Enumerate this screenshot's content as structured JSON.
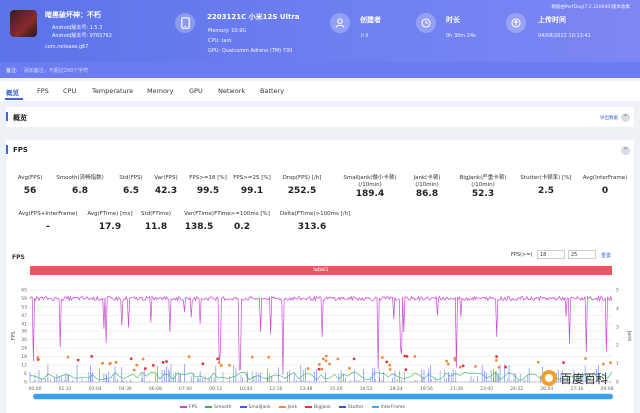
{
  "header": {
    "app_name": "暗黑破坏神：不朽",
    "android_version_line": "Android版本号: 1.5.3",
    "android_code_line": "Android版本号: 9765762",
    "package": "com.netease.g67",
    "device_title": "2203121C 小米12S Ultra",
    "memory": "Memory: 10.9G",
    "cpu": "CPU: taro",
    "gpu": "GPU: Qualcomm Adreno (TM) 730",
    "creator_label": "创建者",
    "creator_value": "li li",
    "duration_label": "时长",
    "duration_value": "0h 30m 24s",
    "upload_label": "上传时间",
    "upload_value": "04/08/2022 10:13:41",
    "perfdog_version": "数据由PerfDog(7.2.220640)版本收集"
  },
  "note": {
    "label": "备注:",
    "placeholder": "添加备注，不超过200个字符"
  },
  "tabs": [
    "概览",
    "FPS",
    "CPU",
    "Temperature",
    "Memory",
    "GPU",
    "Network",
    "Battery"
  ],
  "overview": {
    "title": "概览",
    "export": "导出数据"
  },
  "fps_section": {
    "title": "FPS"
  },
  "stats_row1": [
    {
      "label": "Avg(FPS)",
      "value": "56"
    },
    {
      "label": "Smooth(流畅指数)",
      "value": "6.8"
    },
    {
      "label": "Std(FPS)",
      "value": "6.5"
    },
    {
      "label": "Var(FPS)",
      "value": "42.3"
    },
    {
      "label": "FPS>=18 [%]",
      "value": "99.5"
    },
    {
      "label": "FPS>=25 [%]",
      "value": "99.1"
    },
    {
      "label": "Drop(FPS) [/h]",
      "value": "252.5"
    },
    {
      "label": "Smalljank(微小卡顿)",
      "label2": "(/10min)",
      "value": "189.4"
    },
    {
      "label": "Jank(卡顿)",
      "label2": "(/10min)",
      "value": "86.8"
    },
    {
      "label": "BigJank(严重卡顿)",
      "label2": "(/10min)",
      "value": "52.3"
    },
    {
      "label": "Stutter(卡顿率) [%]",
      "value": "2.5"
    },
    {
      "label": "Avg(InterFrame)",
      "value": "0"
    }
  ],
  "stats_row2": [
    {
      "label": "Avg(FPS+InterFrame)",
      "value": "-"
    },
    {
      "label": "Avg(FTime) [ms]",
      "value": "17.9"
    },
    {
      "label": "Std(FTime)",
      "value": "11.8"
    },
    {
      "label": "Var(FTime)",
      "value": "138.5"
    },
    {
      "label": "FTime>=100ms [%]",
      "value": "0.2"
    },
    {
      "label": "Delta(FTime)>100ms [/h]",
      "value": "313.6"
    }
  ],
  "chart_controls": {
    "label": "FPS(>=)",
    "v1": "18",
    "v2": "25",
    "reset": "重置"
  },
  "chart_label_bar": "label1",
  "chart_data": {
    "type": "line",
    "title": "FPS",
    "ylabel": "FPS",
    "y2label": "Jank",
    "yticks": [
      0,
      6,
      12,
      18,
      24,
      30,
      36,
      41,
      47,
      53,
      59,
      65
    ],
    "y2ticks": [
      0,
      1,
      2,
      3,
      4,
      5
    ],
    "xticks": [
      "00:00",
      "01:32",
      "03:04",
      "04:36",
      "06:08",
      "07:40",
      "09:12",
      "10:44",
      "12:16",
      "13:48",
      "15:20",
      "16:52",
      "18:24",
      "19:56",
      "21:28",
      "23:00",
      "24:32",
      "26:04",
      "27:36",
      "29:08"
    ],
    "xlim_minutes": [
      0,
      30.4
    ],
    "ylim": [
      0,
      65
    ],
    "series": [
      {
        "name": "FPS",
        "color": "#c84bd2",
        "baseline": 59
      },
      {
        "name": "Smooth",
        "color": "#2fb84f"
      },
      {
        "name": "SmallJank",
        "color": "#3d5bf0"
      },
      {
        "name": "Jank",
        "color": "#f08a3a"
      },
      {
        "name": "BigJank",
        "color": "#e8353b"
      },
      {
        "name": "Stutter",
        "color": "#3a55c8"
      },
      {
        "name": "InterFrame",
        "color": "#34aef0"
      }
    ]
  },
  "watermark_text": "百度百科"
}
